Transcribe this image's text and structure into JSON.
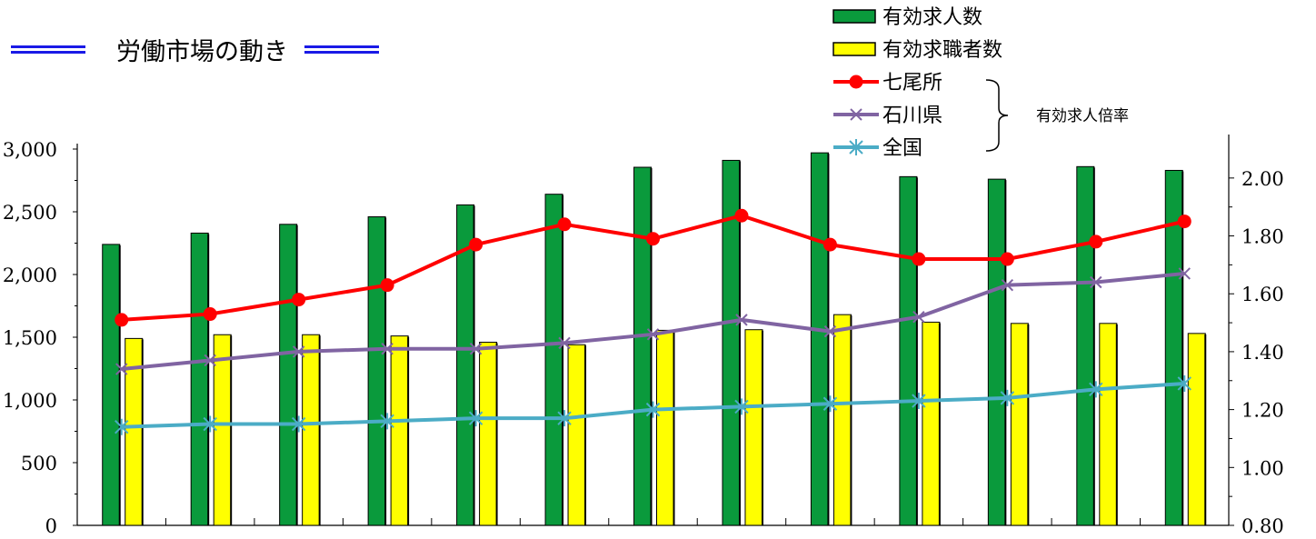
{
  "title": "労働市場の動き",
  "bracket_label": "有効求人倍率",
  "colors": {
    "openings": "#0a9a3c",
    "seekers": "#ffff00",
    "nanao": "#ff0000",
    "ishikawa": "#8064a2",
    "national": "#4bacc6",
    "title_rule": "#1a1ae6"
  },
  "chart_data": {
    "type": "bar+line",
    "categories": [
      "",
      "",
      "",
      "",
      "",
      "",
      "",
      "",
      "",
      "",
      "",
      "",
      ""
    ],
    "left_axis": {
      "range": [
        0,
        3000
      ],
      "ticks": [
        "0",
        "500",
        "1,000",
        "1,500",
        "2,000",
        "2,500",
        "3,000"
      ]
    },
    "right_axis": {
      "range": [
        0.8,
        2.1
      ],
      "ticks": [
        "0.80",
        "1.00",
        "1.20",
        "1.40",
        "1.60",
        "1.80",
        "2.00"
      ]
    },
    "bar_series": [
      {
        "name": "有効求人数",
        "axis": "left",
        "color": "#0a9a3c",
        "values": [
          2240,
          2330,
          2400,
          2460,
          2555,
          2640,
          2855,
          2910,
          2970,
          2780,
          2760,
          2860,
          2830
        ]
      },
      {
        "name": "有効求職者数",
        "axis": "left",
        "color": "#ffff00",
        "values": [
          1490,
          1520,
          1520,
          1510,
          1460,
          1440,
          1555,
          1560,
          1680,
          1620,
          1610,
          1610,
          1530
        ]
      }
    ],
    "line_series": [
      {
        "name": "七尾所",
        "axis": "right",
        "color": "#ff0000",
        "marker": "circle",
        "values": [
          1.51,
          1.53,
          1.58,
          1.63,
          1.77,
          1.84,
          1.79,
          1.87,
          1.77,
          1.72,
          1.72,
          1.78,
          1.85
        ]
      },
      {
        "name": "石川県",
        "axis": "right",
        "color": "#8064a2",
        "marker": "x",
        "values": [
          1.34,
          1.37,
          1.4,
          1.41,
          1.41,
          1.43,
          1.46,
          1.51,
          1.47,
          1.52,
          1.63,
          1.64,
          1.67
        ]
      },
      {
        "name": "全国",
        "axis": "right",
        "color": "#4bacc6",
        "marker": "star",
        "values": [
          1.14,
          1.15,
          1.15,
          1.16,
          1.17,
          1.17,
          1.2,
          1.21,
          1.22,
          1.23,
          1.24,
          1.27,
          1.29
        ]
      }
    ],
    "legend_position": "top-right",
    "grid": false
  }
}
